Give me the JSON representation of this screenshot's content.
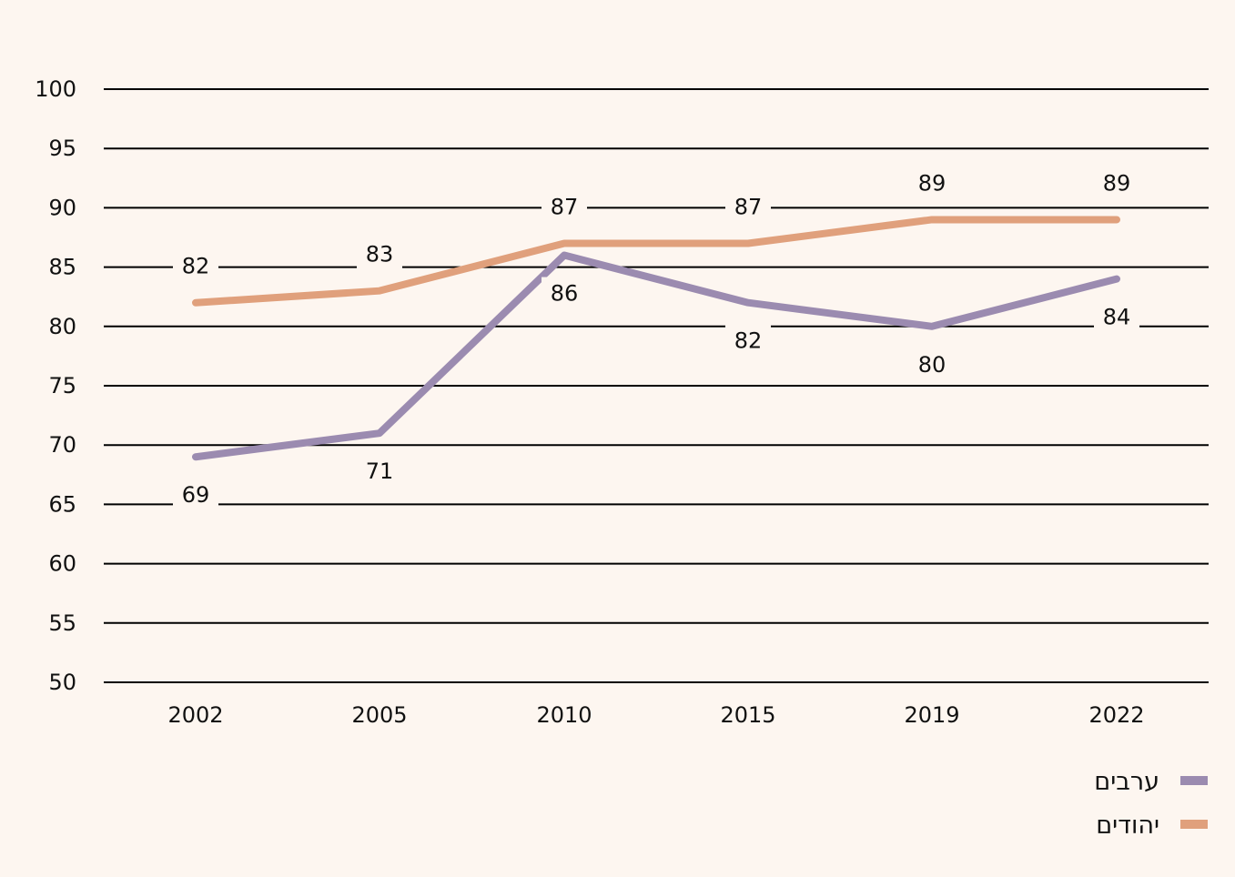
{
  "chart_data": {
    "type": "line",
    "categories": [
      "2002",
      "2005",
      "2010",
      "2015",
      "2019",
      "2022"
    ],
    "series": [
      {
        "name": "יהודים",
        "color": "#e0a07c",
        "values": [
          82,
          83,
          87,
          87,
          89,
          89
        ]
      },
      {
        "name": "ערבים",
        "color": "#9b8bb0",
        "values": [
          69,
          71,
          86,
          82,
          80,
          84
        ]
      }
    ],
    "ylim": [
      50,
      100
    ],
    "yticks": [
      50,
      55,
      60,
      65,
      70,
      75,
      80,
      85,
      90,
      95,
      100
    ],
    "grid": true,
    "legend": "bottom-right",
    "legend_order": [
      "ערבים",
      "יהודים"
    ]
  }
}
